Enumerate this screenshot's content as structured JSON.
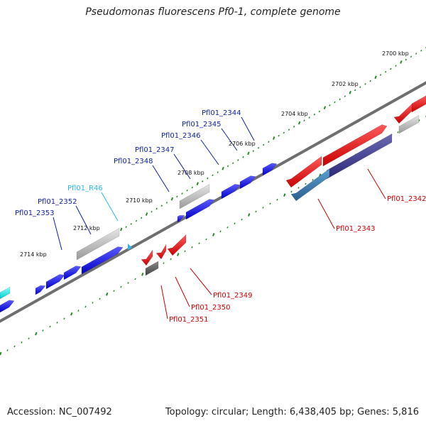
{
  "title": "Pseudomonas fluorescens Pf0-1, complete genome",
  "footer": {
    "accession": "Accession: NC_007492",
    "summary": "Topology: circular; Length: 6,438,405 bp; Genes: 5,816"
  },
  "scale_labels": [
    "2700 kbp",
    "2702 kbp",
    "2704 kbp",
    "2706 kbp",
    "2708 kbp",
    "2710 kbp",
    "2712 kbp",
    "2714 kbp"
  ],
  "gene_labels_top": [
    {
      "text": "Pfl01_2344",
      "color": "#0b1f9e"
    },
    {
      "text": "Pfl01_2345",
      "color": "#0b1f9e"
    },
    {
      "text": "Pfl01_2346",
      "color": "#0b1f9e"
    },
    {
      "text": "Pfl01_2347",
      "color": "#0b1f9e"
    },
    {
      "text": "Pfl01_2348",
      "color": "#0b1f9e"
    },
    {
      "text": "Pfl01_R46",
      "color": "#29b8ee"
    },
    {
      "text": "Pfl01_2352",
      "color": "#0b1f9e"
    },
    {
      "text": "Pfl01_2353",
      "color": "#0b1f9e"
    }
  ],
  "gene_labels_bottom": [
    {
      "text": "Pfl01_2342",
      "color": "#cc0000"
    },
    {
      "text": "Pfl01_2343",
      "color": "#cc0000"
    },
    {
      "text": "Pfl01_2349",
      "color": "#cc0000"
    },
    {
      "text": "Pfl01_2350",
      "color": "#cc0000"
    },
    {
      "text": "Pfl01_2351",
      "color": "#cc0000"
    }
  ],
  "colors": {
    "forward_gene": "#1a1aee",
    "reverse_gene": "#ee1111",
    "rna": "#29b8ee",
    "pseudo": "#bbbbbb",
    "backbone": "#777777",
    "tick": "#1f8a1f"
  }
}
